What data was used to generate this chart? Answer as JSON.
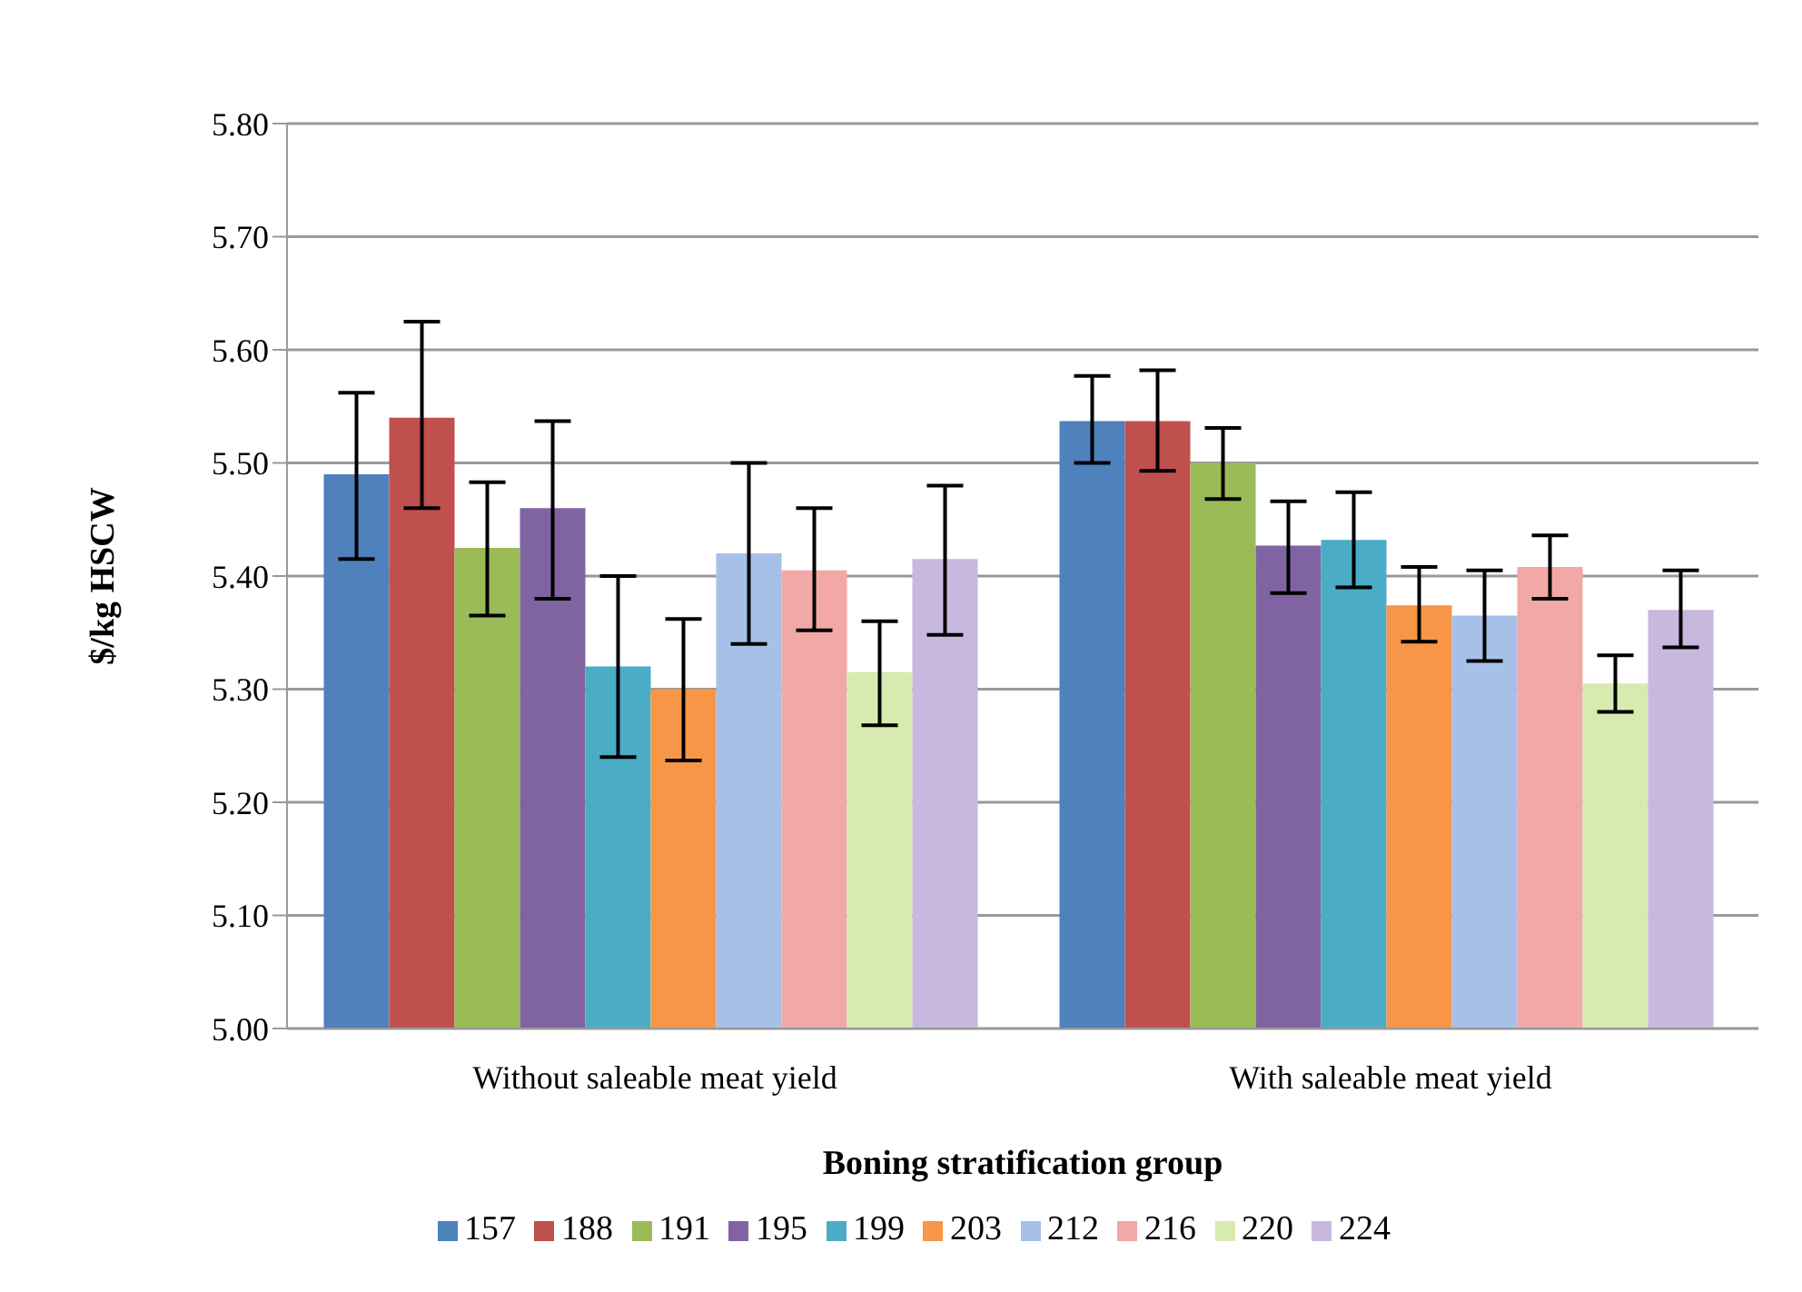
{
  "chart_data": {
    "type": "bar",
    "xlabel": "Boning stratification group",
    "ylabel": "$/kg HSCW",
    "categories": [
      "Without saleable meat yield",
      "With saleable meat yield"
    ],
    "series": [
      {
        "name": "157",
        "color": "#4f81bd",
        "values": [
          5.49,
          5.537
        ],
        "errors": [
          [
            5.415,
            5.562
          ],
          [
            5.5,
            5.577
          ]
        ]
      },
      {
        "name": "188",
        "color": "#c0504d",
        "values": [
          5.54,
          5.537
        ],
        "errors": [
          [
            5.46,
            5.625
          ],
          [
            5.493,
            5.582
          ]
        ]
      },
      {
        "name": "191",
        "color": "#9bbb59",
        "values": [
          5.425,
          5.5
        ],
        "errors": [
          [
            5.365,
            5.483
          ],
          [
            5.468,
            5.531
          ]
        ]
      },
      {
        "name": "195",
        "color": "#8064a2",
        "values": [
          5.46,
          5.427
        ],
        "errors": [
          [
            5.38,
            5.537
          ],
          [
            5.385,
            5.466
          ]
        ]
      },
      {
        "name": "199",
        "color": "#4bacc6",
        "values": [
          5.32,
          5.432
        ],
        "errors": [
          [
            5.24,
            5.4
          ],
          [
            5.39,
            5.474
          ]
        ]
      },
      {
        "name": "203",
        "color": "#f79646",
        "values": [
          5.3,
          5.374
        ],
        "errors": [
          [
            5.237,
            5.362
          ],
          [
            5.342,
            5.408
          ]
        ]
      },
      {
        "name": "212",
        "color": "#a7c0e8",
        "values": [
          5.42,
          5.365
        ],
        "errors": [
          [
            5.34,
            5.5
          ],
          [
            5.325,
            5.405
          ]
        ]
      },
      {
        "name": "216",
        "color": "#f2a8a6",
        "values": [
          5.405,
          5.408
        ],
        "errors": [
          [
            5.352,
            5.46
          ],
          [
            5.38,
            5.436
          ]
        ]
      },
      {
        "name": "220",
        "color": "#d7eab0",
        "values": [
          5.315,
          5.305
        ],
        "errors": [
          [
            5.268,
            5.36
          ],
          [
            5.28,
            5.33
          ]
        ]
      },
      {
        "name": "224",
        "color": "#c8b8dd",
        "values": [
          5.415,
          5.37
        ],
        "errors": [
          [
            5.348,
            5.48
          ],
          [
            5.337,
            5.405
          ]
        ]
      }
    ],
    "ylim": [
      5.0,
      5.8
    ],
    "yticks": [
      {
        "value": 5.0,
        "label": "5.00"
      },
      {
        "value": 5.1,
        "label": "5.10"
      },
      {
        "value": 5.2,
        "label": "5.20"
      },
      {
        "value": 5.3,
        "label": "5.30"
      },
      {
        "value": 5.4,
        "label": "5.40"
      },
      {
        "value": 5.5,
        "label": "5.50"
      },
      {
        "value": 5.6,
        "label": "5.60"
      },
      {
        "value": 5.7,
        "label": "5.70"
      },
      {
        "value": 5.8,
        "label": "5.80"
      }
    ],
    "grid": "y",
    "legend": "bottom"
  }
}
